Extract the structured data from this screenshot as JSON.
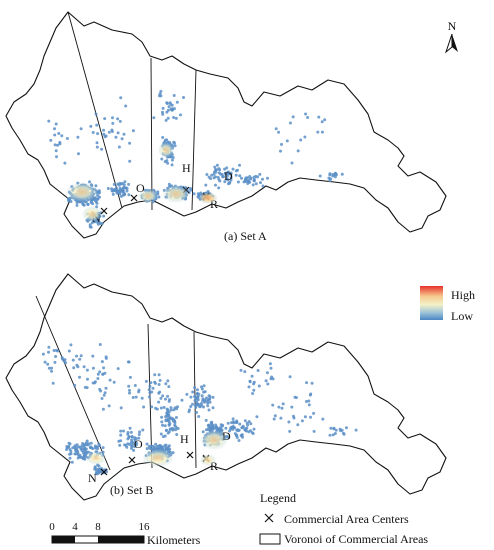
{
  "north": "N",
  "maps": [
    {
      "caption": "(a) Set A",
      "centers": [
        "N",
        "O",
        "H",
        "D",
        "R"
      ]
    },
    {
      "caption": "(b) Set B",
      "centers": [
        "N",
        "O",
        "H",
        "D",
        "R"
      ]
    }
  ],
  "colorbar": {
    "high": "High",
    "low": "Low",
    "colors": [
      "#e8322c",
      "#f6c98e",
      "#f3f1c8",
      "#9ec5d8",
      "#4a86c4"
    ]
  },
  "legend": {
    "title": "Legend",
    "center_label": "Commercial Area Centers",
    "voronoi_label": "Voronoi of Commercial Areas"
  },
  "scalebar": {
    "ticks": [
      "0",
      "4",
      "8",
      "16"
    ],
    "unit": "Kilometers"
  },
  "colors": {
    "point": "#5b8fc7",
    "boundary": "#111111"
  }
}
